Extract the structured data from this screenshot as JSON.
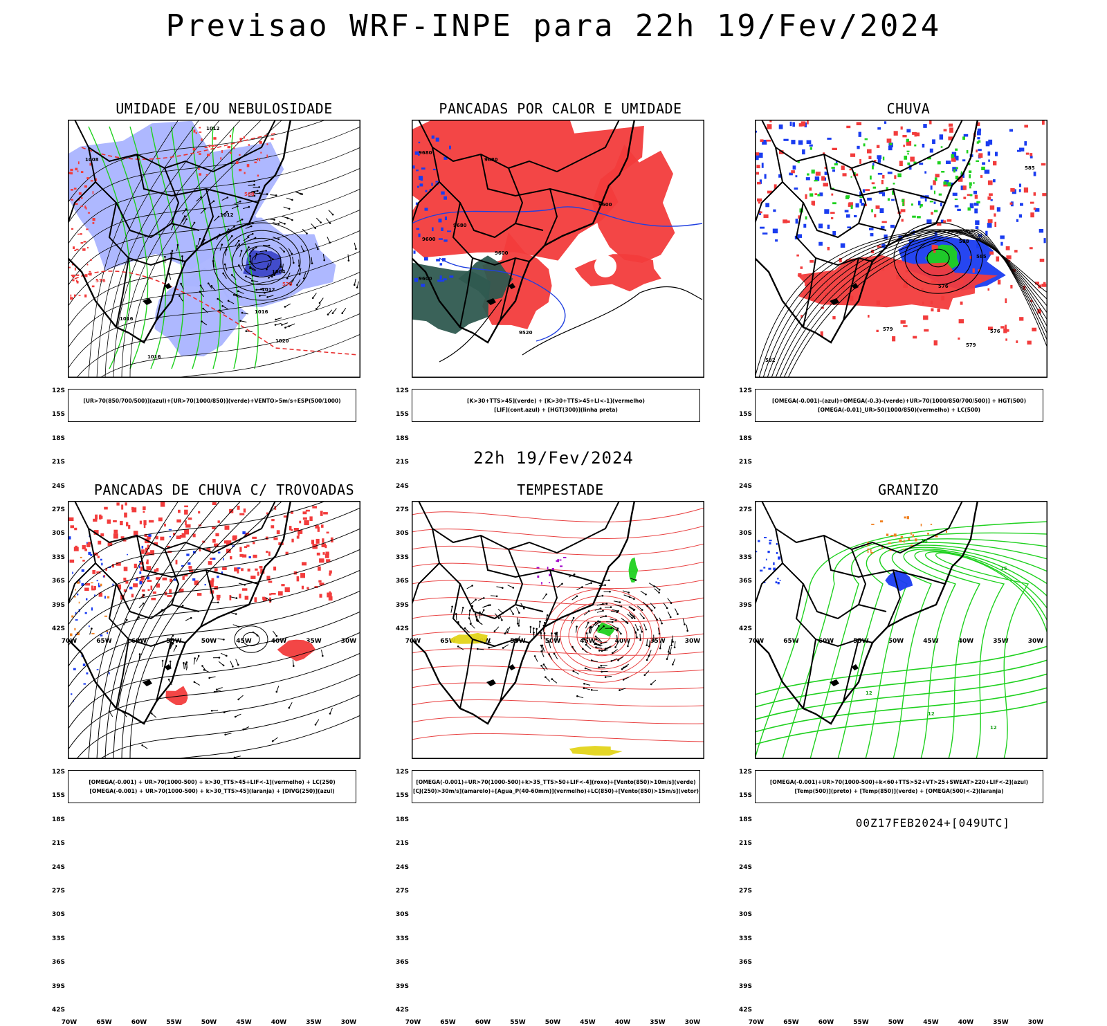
{
  "header": {
    "title": "Previsao WRF-INPE  para 22h 19/Fev/2024"
  },
  "subheader": {
    "time": "22h 19/Fev/2024"
  },
  "axes": {
    "lat_labels": [
      "12S",
      "15S",
      "18S",
      "21S",
      "24S",
      "27S",
      "30S",
      "33S",
      "36S",
      "39S",
      "42S"
    ],
    "lon_labels": [
      "70W",
      "65W",
      "60W",
      "55W",
      "50W",
      "45W",
      "40W",
      "35W",
      "30W"
    ]
  },
  "panels": [
    {
      "title": "UMIDADE E/OU NEBULOSIDADE",
      "legend": [
        "[UR>70(850/700/500)](azul)+[UR>70(1000/850)](verde)+VENTO>5m/s+ESP(500/1000)"
      ],
      "contour_labels": [
        "1008",
        "1012",
        "1012",
        "1004",
        "1012",
        "1016",
        "1016",
        "1020",
        "1016",
        "576",
        "570",
        "588"
      ]
    },
    {
      "title": "PANCADAS POR CALOR E UMIDADE",
      "legend": [
        "[K>30+TTS>45](verde) + [K>30+TTS>45+LI<-1](vermelho)",
        "[LIF](cont.azul) + [HGT(300)](linha preta)"
      ],
      "contour_labels": [
        "9680",
        "9680",
        "9680",
        "9600",
        "9600",
        "9520",
        "9600",
        "9600"
      ]
    },
    {
      "title": "CHUVA",
      "legend": [
        "[OMEGA(-0.001)-(azul)+OMEGA(-0.3)-(verde)+UR>70(1000/850/700/500)] + HGT(500)",
        "[OMEGA(-0.01)_UR>50(1000/850)(vermelho) + LC(500)"
      ],
      "contour_labels": [
        "585",
        "579",
        "579",
        "582",
        "576",
        "585",
        "576",
        "588"
      ]
    },
    {
      "title": "PANCADAS DE CHUVA C/ TROVOADAS",
      "legend": [
        "[OMEGA(-0.001) + UR>70(1000-500) + k>30_TTS>45+LIF<-1](vermelho) + LC(250)",
        "[OMEGA(-0.001) + UR>70(1000-500) + k>30_TTS>45](laranja) + [DIVG(250)](azul)"
      ],
      "contour_labels": []
    },
    {
      "title": "TEMPESTADE",
      "legend": [
        "[OMEGA(-0.001)+UR>70(1000-500)+k>35_TTS>50+LIF<-4](roxo)+[Vento(850)>10m/s](verde)",
        "[CJ(250)>30m/s](amarelo)+[Agua_P(40-60mm)](vermelho)+LC(850)+[Vento(850)>15m/s](vetor)"
      ],
      "contour_labels": []
    },
    {
      "title": "GRANIZO",
      "legend": [
        "[OMEGA(-0.001)+UR>70(1000-500)+k<60+TTS>52+VT>25+SWEAT>220+LIF<-2](azul)",
        "[Temp(500)](preto) + [Temp(850)](verde) + [OMEGA(500)<-2](laranja)"
      ],
      "contour_labels": [
        "12",
        "12",
        "15",
        "18",
        "12"
      ]
    }
  ],
  "footer": {
    "run": "00Z17FEB2024+[049UTC]"
  },
  "colors": {
    "red": "#f23c3c",
    "green": "#1fd11f",
    "blue": "#1a3cf0",
    "lightblue": "#aab4ff",
    "darkteal": "#2f5a50",
    "yellow": "#e3d41a",
    "orange": "#f08020",
    "purple": "#a000c8"
  }
}
